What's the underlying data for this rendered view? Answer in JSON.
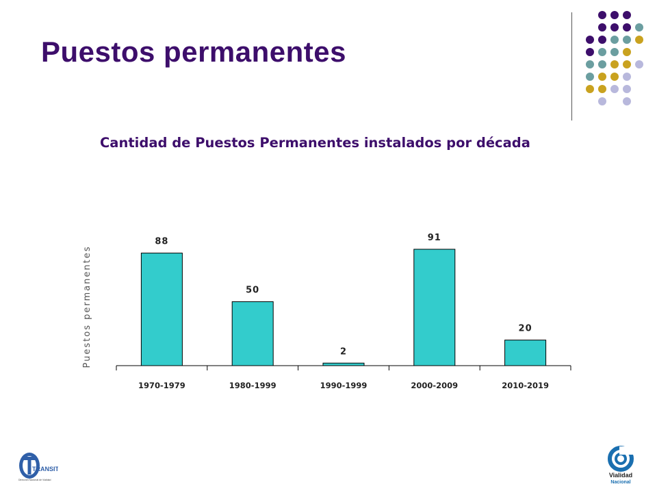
{
  "slide": {
    "title": "Puestos permanentes"
  },
  "logos": {
    "left_name": "TRANSITO",
    "left_sub": "Dirección Nacional de Vialidad",
    "right_name": "Vialidad",
    "right_sub": "Nacional"
  },
  "colors": {
    "title": "#3d0e6b",
    "bar": "#33cccc",
    "dot_purple": "#3d0e6b",
    "dot_teal": "#6b9ea0",
    "dot_gold": "#c9a21f",
    "dot_lavender": "#b8b8dc"
  },
  "chart_data": {
    "type": "bar",
    "title": "Cantidad de Puestos Permanentes instalados por década",
    "categories": [
      "1970-1979",
      "1980-1999",
      "1990-1999",
      "2000-2009",
      "2010-2019"
    ],
    "values": [
      88,
      50,
      2,
      91,
      20
    ],
    "xlabel": "",
    "ylabel": "Puestos permanentes",
    "ylim": [
      0,
      91
    ],
    "grid": false,
    "legend": "none",
    "data_labels": true
  }
}
